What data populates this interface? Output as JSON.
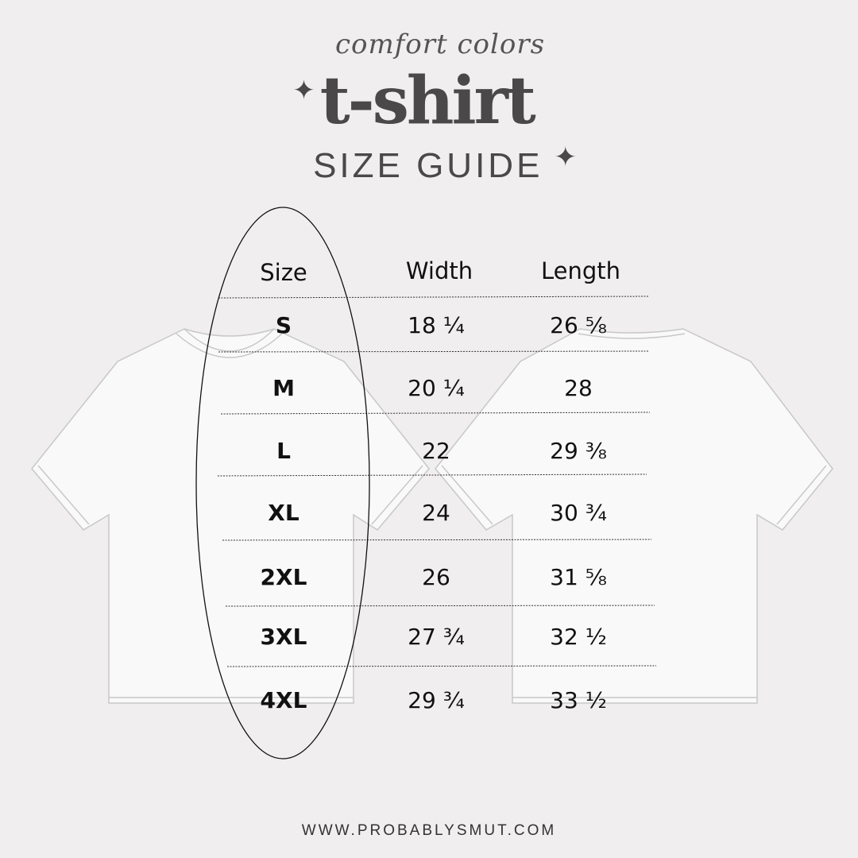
{
  "header": {
    "brand": "comfort colors",
    "title": "t-shirt",
    "subtitle": "SIZE GUIDE",
    "star_icon": "sparkle-icon"
  },
  "table": {
    "columns": [
      "Size",
      "Width",
      "Length"
    ],
    "rows": [
      [
        "S",
        "18 ¼",
        "26 ⅝"
      ],
      [
        "M",
        "20 ¼",
        "28"
      ],
      [
        "L",
        "22",
        "29 ⅜"
      ],
      [
        "XL",
        "24",
        "30 ¾"
      ],
      [
        "2XL",
        "26",
        "31 ⅝"
      ],
      [
        "3XL",
        "27 ¾",
        "32 ½"
      ],
      [
        "4XL",
        "29 ¾",
        "33 ½"
      ]
    ]
  },
  "footer": {
    "website": "WWW.PROBABLYSMUT.COM"
  },
  "colors": {
    "background": "#f0eeef",
    "title": "#4a4849",
    "shirt_fill": "#f9f9f9",
    "shirt_outline": "#c8c8c8"
  }
}
